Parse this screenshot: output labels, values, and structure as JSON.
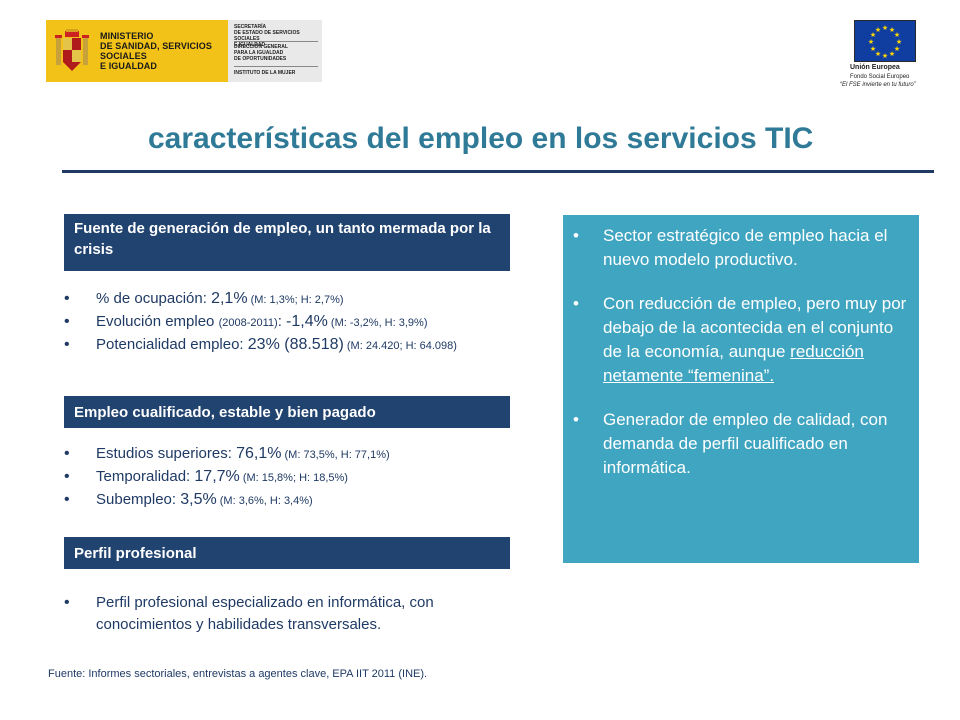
{
  "header": {
    "ministry_name": "MINISTERIO\nDE SANIDAD, SERVICIOS SOCIALES\nE IGUALDAD",
    "secretaria": "SECRETARÍA\nDE ESTADO DE SERVICIOS SOCIALES\nE IGUALDAD",
    "direccion": "DIRECCIÓN GENERAL\nPARA LA IGUALDAD\nDE OPORTUNIDADES",
    "instituto": "INSTITUTO DE LA MUJER",
    "eu_name": "Unión Europea",
    "eu_fund": "Fondo Social Europeo",
    "eu_motto": "“El FSE invierte en tu futuro”"
  },
  "title": "características del empleo en los servicios TIC",
  "section1": {
    "header": "Fuente de generación de empleo, un tanto mermada por la crisis",
    "items": [
      {
        "label": "% de ocupación: ",
        "value": "2,1%",
        "detail": " (M: 1,3%; H: 2,7%)"
      },
      {
        "label": "Evolución empleo ",
        "label_small": "(2008-2011)",
        "label_end": ": ",
        "value": "-1,4%",
        "detail": " (M: -3,2%, H: 3,9%)"
      },
      {
        "label": "Potencialidad empleo: ",
        "value": "23% (88.518)",
        "detail": " (M: 24.420; H: 64.098)"
      }
    ]
  },
  "section2": {
    "header": "Empleo cualificado, estable y bien pagado",
    "items": [
      {
        "label": "Estudios superiores: ",
        "value": "76,1%",
        "detail": " (M: 73,5%, H: 77,1%)"
      },
      {
        "label": "Temporalidad: ",
        "value": "17,7%",
        "detail": " (M: 15,8%; H: 18,5%)"
      },
      {
        "label": "Subempleo: ",
        "value": "3,5%",
        "detail": " (M: 3,6%, H: 3,4%)"
      }
    ]
  },
  "section3": {
    "header": "Perfil profesional",
    "items": [
      "Perfil profesional especializado en informática, con conocimientos y habilidades transversales."
    ]
  },
  "box": {
    "item1": "Sector estratégico de empleo hacia el nuevo modelo productivo.",
    "item2_text": "Con reducción de empleo, pero muy por debajo de la acontecida en el conjunto de la economía, aunque ",
    "item2_underlined": "reducción netamente “femenina”.",
    "item3": "Generador de empleo de calidad, con demanda de perfil cualificado en informática."
  },
  "source": "Fuente: Informes sectoriales, entrevistas a agentes clave, EPA IIT 2011 (INE).",
  "colors": {
    "title": "#2e7a97",
    "section_bar": "#21436f",
    "box": "#40a5c0",
    "text": "#1f3a64"
  }
}
